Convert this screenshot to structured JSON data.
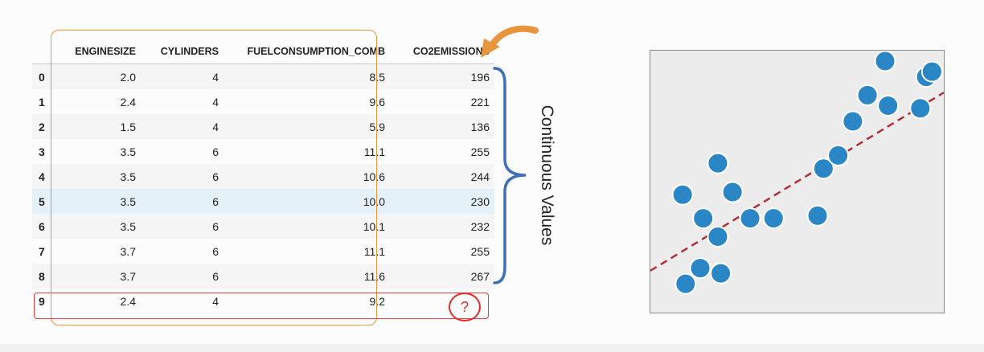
{
  "table": {
    "columns": [
      "",
      "ENGINESIZE",
      "CYLINDERS",
      "FUELCONSUMPTION_COMB",
      "CO2EMISSIONS"
    ],
    "rows": [
      [
        "0",
        "2.0",
        "4",
        "8.5",
        "196"
      ],
      [
        "1",
        "2.4",
        "4",
        "9.6",
        "221"
      ],
      [
        "2",
        "1.5",
        "4",
        "5.9",
        "136"
      ],
      [
        "3",
        "3.5",
        "6",
        "11.1",
        "255"
      ],
      [
        "4",
        "3.5",
        "6",
        "10.6",
        "244"
      ],
      [
        "5",
        "3.5",
        "6",
        "10.0",
        "230"
      ],
      [
        "6",
        "3.5",
        "6",
        "10.1",
        "232"
      ],
      [
        "7",
        "3.7",
        "6",
        "11.1",
        "255"
      ],
      [
        "8",
        "3.7",
        "6",
        "11.6",
        "267"
      ],
      [
        "9",
        "2.4",
        "4",
        "9.2",
        ""
      ]
    ],
    "highlighted_row": 5,
    "unknown_value": "?"
  },
  "annotation": {
    "label": "Continuous Values"
  },
  "colors": {
    "orange": "#e8963e",
    "red": "#e0423a",
    "brace": "#3f6fb6",
    "dot": "#2b86c5",
    "trend": "#b0303a"
  },
  "chart_data": {
    "type": "scatter",
    "title": "",
    "xlabel": "",
    "ylabel": "",
    "xlim": [
      0,
      100
    ],
    "ylim": [
      0,
      100
    ],
    "grid": false,
    "points": [
      {
        "x": 12,
        "y": 11
      },
      {
        "x": 17,
        "y": 17
      },
      {
        "x": 24,
        "y": 15
      },
      {
        "x": 11,
        "y": 45
      },
      {
        "x": 18,
        "y": 36
      },
      {
        "x": 23,
        "y": 29
      },
      {
        "x": 23,
        "y": 57
      },
      {
        "x": 28,
        "y": 46
      },
      {
        "x": 34,
        "y": 36
      },
      {
        "x": 42,
        "y": 36
      },
      {
        "x": 57,
        "y": 37
      },
      {
        "x": 59,
        "y": 55
      },
      {
        "x": 64,
        "y": 60
      },
      {
        "x": 69,
        "y": 73
      },
      {
        "x": 74,
        "y": 83
      },
      {
        "x": 81,
        "y": 79
      },
      {
        "x": 80,
        "y": 96
      },
      {
        "x": 92,
        "y": 78
      },
      {
        "x": 94,
        "y": 90
      },
      {
        "x": 96,
        "y": 92
      }
    ],
    "trendline": {
      "x": [
        0,
        100
      ],
      "y": [
        16,
        84
      ],
      "style": "dashed"
    }
  }
}
